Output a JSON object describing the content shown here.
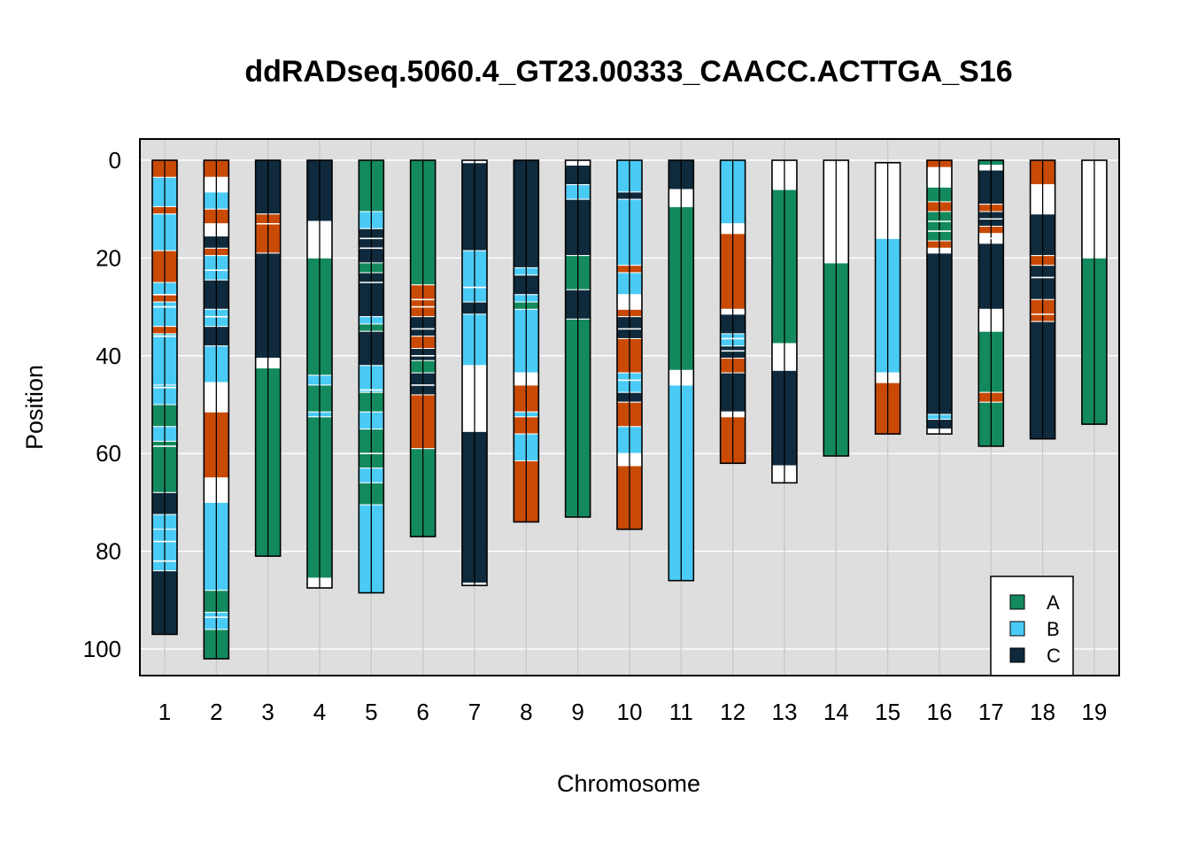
{
  "chart_data": {
    "type": "chromosome-painting",
    "title": "ddRADseq.5060.4_GT23.00333_CAACC.ACTTGA_S16",
    "xlabel": "Chromosome",
    "ylabel": "Position",
    "y_ticks": [
      0,
      20,
      40,
      60,
      80,
      100
    ],
    "ylim": [
      0,
      105
    ],
    "colors": {
      "A": "#138A5E",
      "B": "#4ACBF5",
      "C": "#0F2A3C",
      "D": "#C94A05",
      "missing": "#FFFFFF",
      "panel": "#DEDEDE",
      "grid": "#FFFFFF"
    },
    "legend": [
      {
        "key": "A",
        "label": "A"
      },
      {
        "key": "B",
        "label": "B"
      },
      {
        "key": "C",
        "label": "C"
      }
    ],
    "chromosomes": [
      {
        "label": "1",
        "length": 97,
        "segments": [
          [
            0,
            3.5,
            "D"
          ],
          [
            3.5,
            9.5,
            "B"
          ],
          [
            9.5,
            11,
            "D"
          ],
          [
            11,
            18.5,
            "B"
          ],
          [
            18.5,
            25,
            "D"
          ],
          [
            25,
            27.5,
            "B"
          ],
          [
            27.5,
            29,
            "D"
          ],
          [
            29,
            34,
            "B"
          ],
          [
            34,
            35.5,
            "D"
          ],
          [
            35.5,
            46,
            "B"
          ],
          [
            46,
            50,
            "B"
          ],
          [
            50,
            54.5,
            "A"
          ],
          [
            54.5,
            57.5,
            "B"
          ],
          [
            57.5,
            68,
            "A"
          ],
          [
            68,
            72.5,
            "C"
          ],
          [
            72.5,
            75.5,
            "B"
          ],
          [
            75.5,
            84,
            "B"
          ],
          [
            84,
            97,
            "C"
          ]
        ]
      },
      {
        "label": "2",
        "length": 102,
        "segments": [
          [
            0,
            3.5,
            "D"
          ],
          [
            3.5,
            6.5,
            "missing"
          ],
          [
            6.5,
            10,
            "B"
          ],
          [
            10,
            13,
            "D"
          ],
          [
            13,
            15.5,
            "missing"
          ],
          [
            15.5,
            18,
            "C"
          ],
          [
            18,
            19.5,
            "D"
          ],
          [
            19.5,
            24.5,
            "B"
          ],
          [
            24.5,
            30.5,
            "C"
          ],
          [
            30.5,
            34,
            "B"
          ],
          [
            34,
            38,
            "C"
          ],
          [
            38,
            45.5,
            "B"
          ],
          [
            45.5,
            51.5,
            "missing"
          ],
          [
            51.5,
            65,
            "D"
          ],
          [
            65,
            70,
            "missing"
          ],
          [
            70,
            88,
            "B"
          ],
          [
            88,
            92.5,
            "A"
          ],
          [
            92.5,
            96,
            "B"
          ],
          [
            96,
            102,
            "A"
          ]
        ]
      },
      {
        "label": "3",
        "length": 81,
        "segments": [
          [
            0,
            11,
            "C"
          ],
          [
            11,
            19,
            "D"
          ],
          [
            19,
            40.5,
            "C"
          ],
          [
            40.5,
            42.5,
            "missing"
          ],
          [
            42.5,
            81,
            "A"
          ]
        ]
      },
      {
        "label": "4",
        "length": 87.5,
        "segments": [
          [
            0,
            12.5,
            "C"
          ],
          [
            12.5,
            20,
            "missing"
          ],
          [
            20,
            44,
            "A"
          ],
          [
            44,
            46,
            "B"
          ],
          [
            46,
            51.5,
            "A"
          ],
          [
            51.5,
            52.5,
            "B"
          ],
          [
            52.5,
            85.5,
            "A"
          ],
          [
            85.5,
            87.5,
            "missing"
          ]
        ]
      },
      {
        "label": "5",
        "length": 88.5,
        "segments": [
          [
            0,
            10.5,
            "A"
          ],
          [
            10.5,
            14,
            "B"
          ],
          [
            14,
            21,
            "C"
          ],
          [
            21,
            23,
            "A"
          ],
          [
            23,
            32,
            "C"
          ],
          [
            32,
            33.5,
            "B"
          ],
          [
            33.5,
            35,
            "A"
          ],
          [
            35,
            42,
            "C"
          ],
          [
            42,
            47.5,
            "B"
          ],
          [
            47.5,
            51.5,
            "A"
          ],
          [
            51.5,
            55,
            "B"
          ],
          [
            55,
            63,
            "A"
          ],
          [
            63,
            66,
            "B"
          ],
          [
            66,
            70.5,
            "A"
          ],
          [
            70.5,
            88.5,
            "B"
          ]
        ]
      },
      {
        "label": "6",
        "length": 77,
        "segments": [
          [
            0,
            25.5,
            "A"
          ],
          [
            25.5,
            32,
            "D"
          ],
          [
            32,
            36,
            "C"
          ],
          [
            36,
            38.5,
            "D"
          ],
          [
            38.5,
            41,
            "C"
          ],
          [
            41,
            43.5,
            "A"
          ],
          [
            43.5,
            48,
            "C"
          ],
          [
            48,
            59,
            "D"
          ],
          [
            59,
            77,
            "A"
          ]
        ]
      },
      {
        "label": "7",
        "length": 87,
        "segments": [
          [
            0,
            0.5,
            "missing"
          ],
          [
            0.5,
            18.5,
            "C"
          ],
          [
            18.5,
            29,
            "B"
          ],
          [
            29,
            31.5,
            "C"
          ],
          [
            31.5,
            42,
            "B"
          ],
          [
            42,
            55.5,
            "missing"
          ],
          [
            55.5,
            86.5,
            "C"
          ],
          [
            86.5,
            87,
            "missing"
          ]
        ]
      },
      {
        "label": "8",
        "length": 74,
        "segments": [
          [
            0,
            22,
            "C"
          ],
          [
            22,
            23.5,
            "B"
          ],
          [
            23.5,
            27.5,
            "C"
          ],
          [
            27.5,
            29,
            "B"
          ],
          [
            29,
            30.5,
            "A"
          ],
          [
            30.5,
            43.5,
            "B"
          ],
          [
            43.5,
            46,
            "missing"
          ],
          [
            46,
            51.5,
            "D"
          ],
          [
            51.5,
            52.5,
            "B"
          ],
          [
            52.5,
            56,
            "D"
          ],
          [
            56,
            61.5,
            "B"
          ],
          [
            61.5,
            74,
            "D"
          ]
        ]
      },
      {
        "label": "9",
        "length": 73,
        "segments": [
          [
            0,
            1,
            "missing"
          ],
          [
            1,
            5,
            "C"
          ],
          [
            5,
            8,
            "B"
          ],
          [
            8,
            19.5,
            "C"
          ],
          [
            19.5,
            26.5,
            "A"
          ],
          [
            26.5,
            32.5,
            "C"
          ],
          [
            32.5,
            73,
            "A"
          ]
        ]
      },
      {
        "label": "10",
        "length": 75.5,
        "segments": [
          [
            0,
            6.5,
            "B"
          ],
          [
            6.5,
            8,
            "C"
          ],
          [
            8,
            21.5,
            "B"
          ],
          [
            21.5,
            23,
            "D"
          ],
          [
            23,
            27.5,
            "B"
          ],
          [
            27.5,
            30.5,
            "missing"
          ],
          [
            30.5,
            32,
            "D"
          ],
          [
            32,
            36.5,
            "C"
          ],
          [
            36.5,
            43.5,
            "D"
          ],
          [
            43.5,
            47.5,
            "B"
          ],
          [
            47.5,
            49.5,
            "C"
          ],
          [
            49.5,
            54.5,
            "D"
          ],
          [
            54.5,
            60,
            "B"
          ],
          [
            60,
            62.5,
            "missing"
          ],
          [
            62.5,
            75.5,
            "D"
          ]
        ]
      },
      {
        "label": "11",
        "length": 86,
        "segments": [
          [
            0,
            6,
            "C"
          ],
          [
            6,
            9.5,
            "missing"
          ],
          [
            9.5,
            43,
            "A"
          ],
          [
            43,
            46,
            "missing"
          ],
          [
            46,
            86,
            "B"
          ]
        ]
      },
      {
        "label": "12",
        "length": 62,
        "segments": [
          [
            0,
            13,
            "B"
          ],
          [
            13,
            15,
            "missing"
          ],
          [
            15,
            30.5,
            "D"
          ],
          [
            30.5,
            31.5,
            "missing"
          ],
          [
            31.5,
            35.5,
            "C"
          ],
          [
            35.5,
            38,
            "B"
          ],
          [
            38,
            40.5,
            "C"
          ],
          [
            40.5,
            43.5,
            "D"
          ],
          [
            43.5,
            51.5,
            "C"
          ],
          [
            51.5,
            52.5,
            "missing"
          ],
          [
            52.5,
            62,
            "D"
          ]
        ]
      },
      {
        "label": "13",
        "length": 66,
        "segments": [
          [
            0,
            6,
            "missing"
          ],
          [
            6,
            37.5,
            "A"
          ],
          [
            37.5,
            43,
            "missing"
          ],
          [
            43,
            62.5,
            "C"
          ],
          [
            62.5,
            66,
            "missing"
          ]
        ]
      },
      {
        "label": "14",
        "length": 60.5,
        "segments": [
          [
            0,
            21,
            "missing"
          ],
          [
            21,
            60.5,
            "A"
          ]
        ]
      },
      {
        "label": "15",
        "length": 56,
        "segments": [
          [
            0.5,
            16,
            "missing"
          ],
          [
            16,
            43.5,
            "B"
          ],
          [
            43.5,
            45.5,
            "missing"
          ],
          [
            45.5,
            56,
            "D"
          ]
        ]
      },
      {
        "label": "16",
        "length": 56,
        "segments": [
          [
            0,
            1.5,
            "D"
          ],
          [
            1.5,
            5.5,
            "missing"
          ],
          [
            5.5,
            8.5,
            "A"
          ],
          [
            8.5,
            10.5,
            "D"
          ],
          [
            10.5,
            16.5,
            "A"
          ],
          [
            16.5,
            18,
            "D"
          ],
          [
            18,
            19,
            "missing"
          ],
          [
            19,
            52,
            "C"
          ],
          [
            52,
            53,
            "B"
          ],
          [
            53,
            55,
            "C"
          ],
          [
            55,
            56,
            "missing"
          ]
        ]
      },
      {
        "label": "17",
        "length": 58.5,
        "segments": [
          [
            0,
            1,
            "A"
          ],
          [
            1,
            2,
            "missing"
          ],
          [
            2,
            9,
            "C"
          ],
          [
            9,
            10.5,
            "D"
          ],
          [
            10.5,
            13.5,
            "C"
          ],
          [
            13.5,
            15,
            "D"
          ],
          [
            15,
            17,
            "missing"
          ],
          [
            17,
            30.5,
            "C"
          ],
          [
            30.5,
            35,
            "missing"
          ],
          [
            35,
            47.5,
            "A"
          ],
          [
            47.5,
            49.5,
            "D"
          ],
          [
            49.5,
            58.5,
            "A"
          ]
        ]
      },
      {
        "label": "18",
        "length": 57,
        "segments": [
          [
            0,
            5,
            "D"
          ],
          [
            5,
            11,
            "missing"
          ],
          [
            11,
            19.5,
            "C"
          ],
          [
            19.5,
            21.5,
            "D"
          ],
          [
            21.5,
            28.5,
            "C"
          ],
          [
            28.5,
            33,
            "D"
          ],
          [
            33,
            57,
            "C"
          ]
        ]
      },
      {
        "label": "19",
        "length": 54,
        "segments": [
          [
            0,
            20,
            "missing"
          ],
          [
            20,
            54,
            "A"
          ]
        ]
      }
    ],
    "thin_lines": [
      {
        "chr": 0,
        "pos": [
          27.5,
          30,
          36,
          46.5,
          58.5,
          78,
          82
        ]
      },
      {
        "chr": 1,
        "pos": [
          22.5,
          32,
          93.5
        ]
      },
      {
        "chr": 2,
        "pos": [
          13
        ]
      },
      {
        "chr": 4,
        "pos": [
          16,
          18,
          25,
          47,
          60
        ]
      },
      {
        "chr": 5,
        "pos": [
          28.5,
          30,
          34.5,
          40,
          46
        ]
      },
      {
        "chr": 6,
        "pos": [
          26
        ]
      },
      {
        "chr": 9,
        "pos": [
          34.5,
          45
        ]
      },
      {
        "chr": 11,
        "pos": [
          36.5,
          39
        ]
      },
      {
        "chr": 15,
        "pos": [
          12.5,
          14.5
        ]
      },
      {
        "chr": 16,
        "pos": [
          12,
          16
        ]
      },
      {
        "chr": 17,
        "pos": [
          24,
          31.5
        ]
      }
    ]
  }
}
